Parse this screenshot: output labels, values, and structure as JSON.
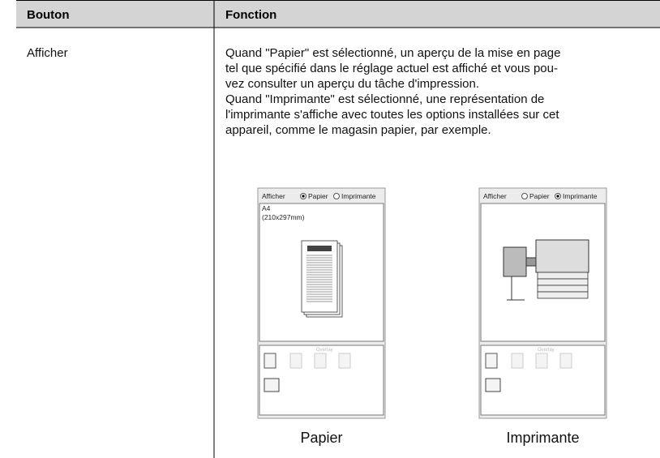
{
  "table": {
    "header": [
      "Bouton",
      "Fonction"
    ],
    "row": {
      "button": "Afficher",
      "lines": [
        "Quand \"Papier\" est sélectionné, un aperçu de la mise en page",
        "tel que spécifié dans le réglage actuel est affiché et vous pou-",
        "vez consulter un aperçu du tâche d'impression.",
        "Quand \"Imprimante\" est sélectionné, une représentation de",
        "l'imprimante s'affiche avec toutes les options installées sur cet",
        "appareil, comme le magasin papier, par exemple."
      ]
    }
  },
  "previews": [
    {
      "label": "Afficher",
      "options": [
        "Papier",
        "Imprimante"
      ],
      "selected": 0,
      "paper_size": "A4",
      "paper_dims": "(210x297mm)",
      "overlay": "Overlay",
      "caption": "Papier"
    },
    {
      "label": "Afficher",
      "options": [
        "Papier",
        "Imprimante"
      ],
      "selected": 1,
      "overlay": "Overlay",
      "caption": "Imprimante"
    }
  ]
}
